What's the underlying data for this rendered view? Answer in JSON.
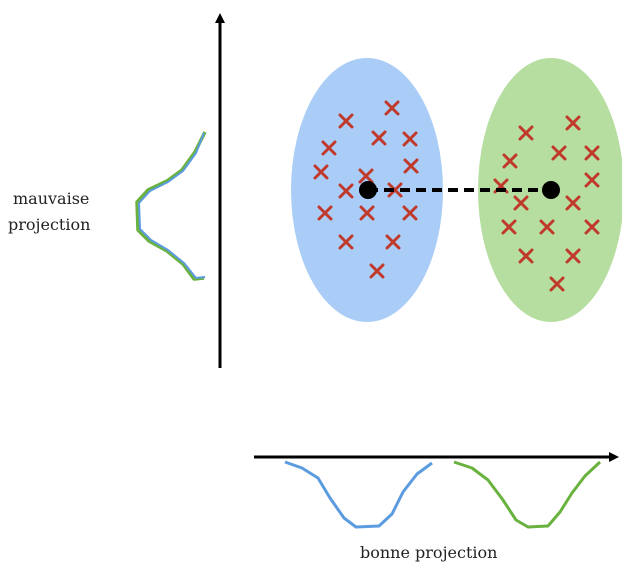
{
  "labels": {
    "bad_projection_line1": "mauvaise",
    "bad_projection_line2": "projection",
    "good_projection": "bonne projection"
  },
  "colors": {
    "blue_cluster_fill": "#aacdf8",
    "green_cluster_fill": "#b5dea0",
    "marker": "#c0392b",
    "blue_curve": "#5b9be0",
    "green_curve": "#6ab23e",
    "axis": "#000000",
    "centroid": "#000000"
  },
  "icons": {
    "sample_marker": "x-mark-icon",
    "centroid": "filled-circle"
  }
}
